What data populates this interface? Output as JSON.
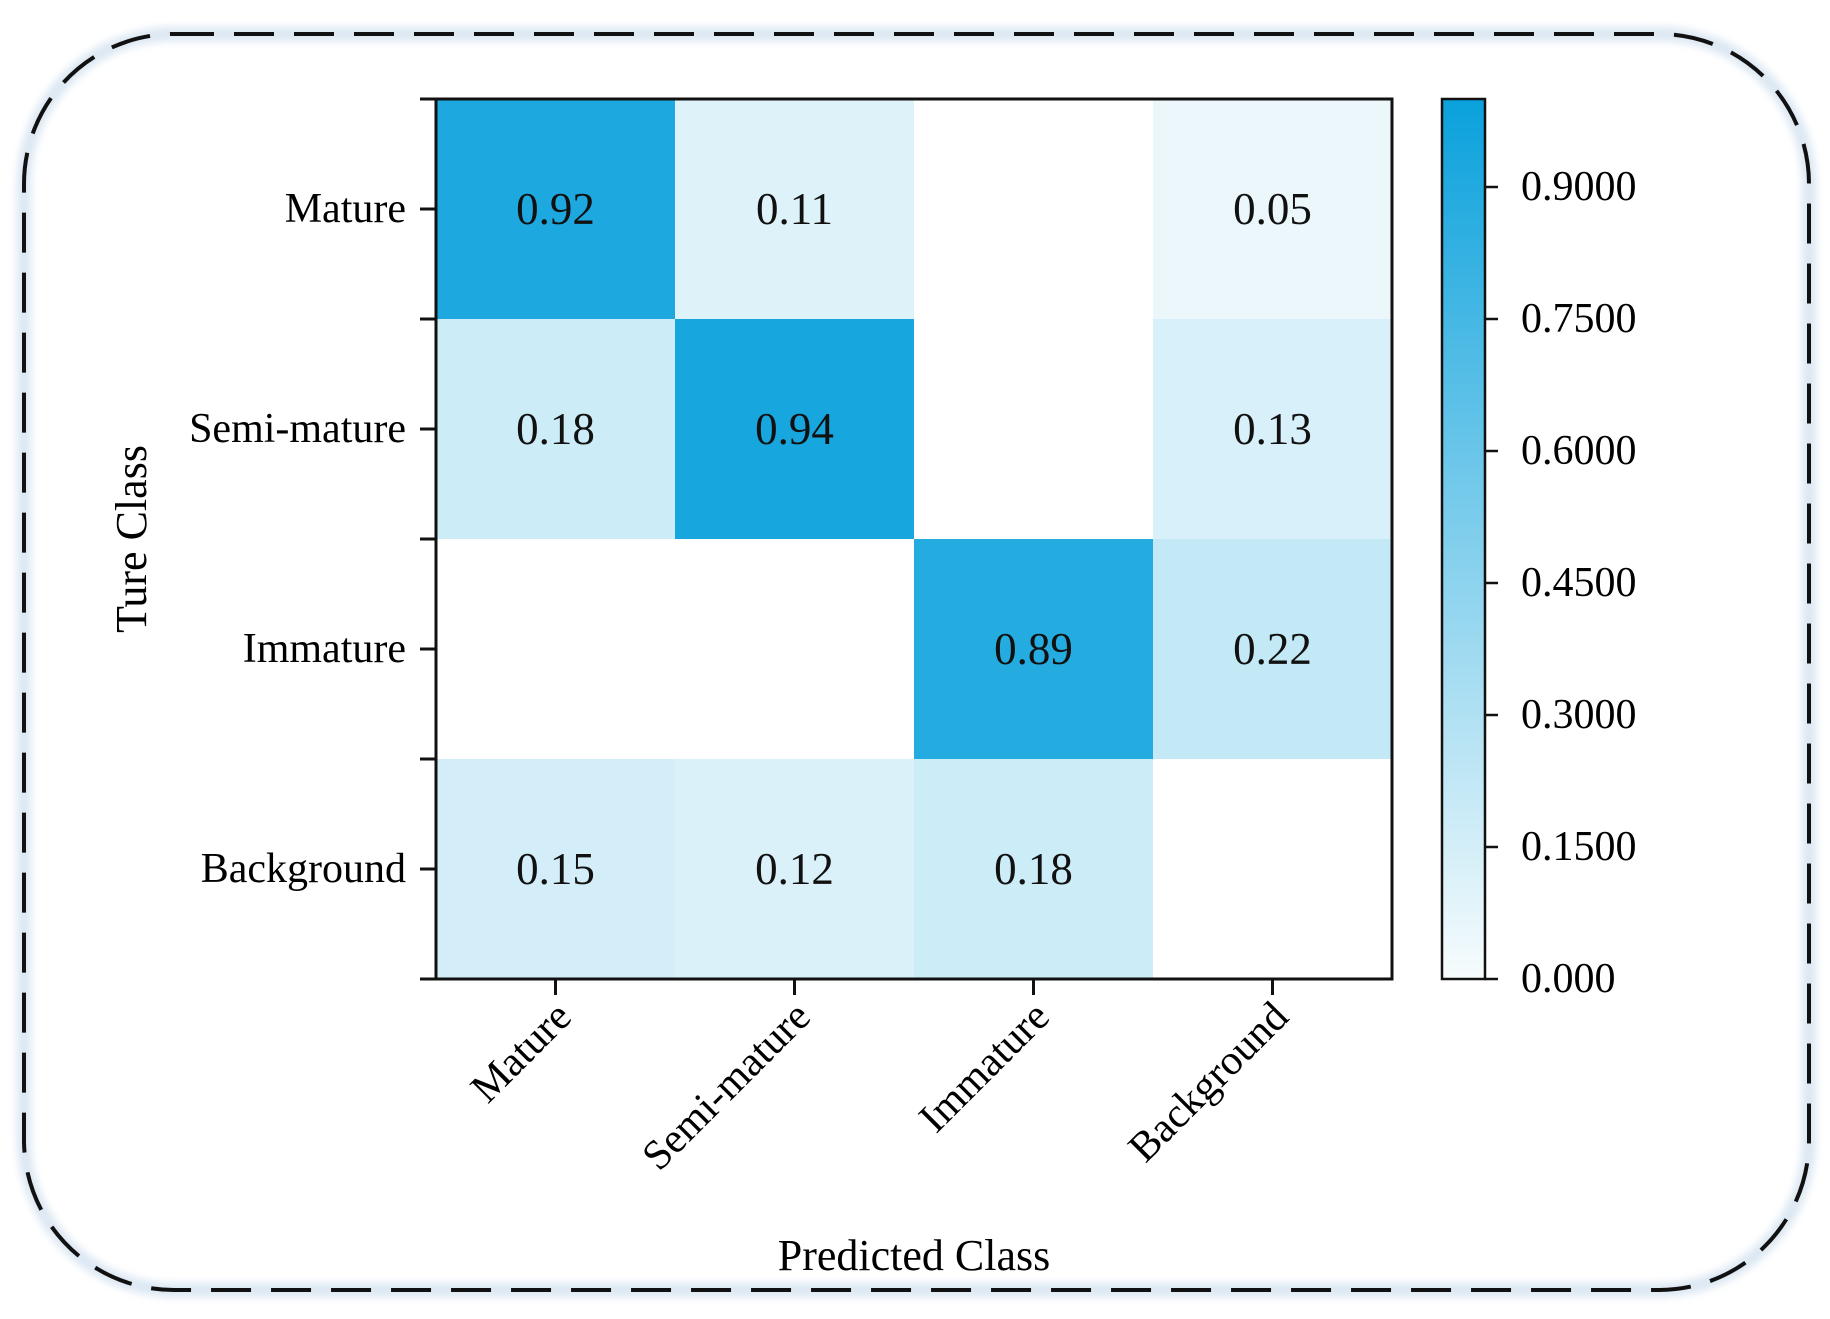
{
  "chart_data": {
    "type": "heatmap",
    "title": "",
    "xlabel": "Predicted Class",
    "ylabel": "Ture Class",
    "x_categories": [
      "Mature",
      "Semi-mature",
      "Immature",
      "Background"
    ],
    "y_categories": [
      "Mature",
      "Semi-mature",
      "Immature",
      "Background"
    ],
    "values": [
      [
        0.92,
        0.11,
        null,
        0.05
      ],
      [
        0.18,
        0.94,
        null,
        0.13
      ],
      [
        null,
        null,
        0.89,
        0.22
      ],
      [
        0.15,
        0.12,
        0.18,
        null
      ]
    ],
    "cell_labels": [
      [
        "0.92",
        "0.11",
        "",
        "0.05"
      ],
      [
        "0.18",
        "0.94",
        "",
        "0.13"
      ],
      [
        "",
        "",
        "0.89",
        "0.22"
      ],
      [
        "0.15",
        "0.12",
        "0.18",
        ""
      ]
    ],
    "colorbar": {
      "min": 0.0,
      "max": 1.0,
      "ticks": [
        0.0,
        0.15,
        0.3,
        0.45,
        0.6,
        0.75,
        0.9
      ],
      "tick_labels": [
        "0.000",
        "0.1500",
        "0.3000",
        "0.4500",
        "0.6000",
        "0.7500",
        "0.9000"
      ]
    },
    "colors": {
      "low": "#f7fcfd",
      "high": "#0aa1dc",
      "frame_border": "#111111"
    }
  }
}
